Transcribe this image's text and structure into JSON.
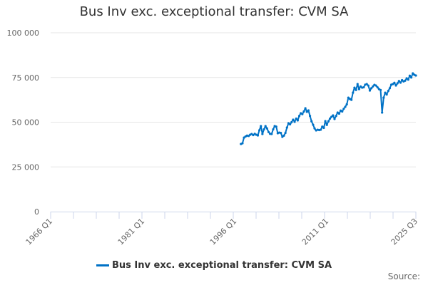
{
  "chart_data": {
    "type": "line",
    "title": "Bus Inv exc. exceptional transfer: CVM SA",
    "xlabel": "",
    "ylabel": "",
    "ylim": [
      0,
      100000
    ],
    "yticks": [
      0,
      25000,
      50000,
      75000,
      100000
    ],
    "ytick_labels": [
      "0",
      "25 000",
      "50 000",
      "75 000",
      "100 000"
    ],
    "xrange": [
      "1966 Q1",
      "2025 Q3"
    ],
    "xtick_labels": [
      "1966 Q1",
      "1981 Q1",
      "1996 Q1",
      "2011 Q1",
      "2025 Q3"
    ],
    "grid": "horizontal",
    "legend_position": "bottom",
    "color": "#0072c6",
    "source_label": "Source:",
    "series": [
      {
        "name": "Bus Inv exc. exceptional transfer: CVM SA",
        "x": [
          "1997 Q1",
          "1997 Q2",
          "1997 Q3",
          "1997 Q4",
          "1998 Q1",
          "1998 Q2",
          "1998 Q3",
          "1998 Q4",
          "1999 Q1",
          "1999 Q2",
          "1999 Q3",
          "1999 Q4",
          "2000 Q1",
          "2000 Q2",
          "2000 Q3",
          "2000 Q4",
          "2001 Q1",
          "2001 Q2",
          "2001 Q3",
          "2001 Q4",
          "2002 Q1",
          "2002 Q2",
          "2002 Q3",
          "2002 Q4",
          "2003 Q1",
          "2003 Q2",
          "2003 Q3",
          "2003 Q4",
          "2004 Q1",
          "2004 Q2",
          "2004 Q3",
          "2004 Q4",
          "2005 Q1",
          "2005 Q2",
          "2005 Q3",
          "2005 Q4",
          "2006 Q1",
          "2006 Q2",
          "2006 Q3",
          "2006 Q4",
          "2007 Q1",
          "2007 Q2",
          "2007 Q3",
          "2007 Q4",
          "2008 Q1",
          "2008 Q2",
          "2008 Q3",
          "2008 Q4",
          "2009 Q1",
          "2009 Q2",
          "2009 Q3",
          "2009 Q4",
          "2010 Q1",
          "2010 Q2",
          "2010 Q3",
          "2010 Q4",
          "2011 Q1",
          "2011 Q2",
          "2011 Q3",
          "2011 Q4",
          "2012 Q1",
          "2012 Q2",
          "2012 Q3",
          "2012 Q4",
          "2013 Q1",
          "2013 Q2",
          "2013 Q3",
          "2013 Q4",
          "2014 Q1",
          "2014 Q2",
          "2014 Q3",
          "2014 Q4",
          "2015 Q1",
          "2015 Q2",
          "2015 Q3",
          "2015 Q4",
          "2016 Q1",
          "2016 Q2",
          "2016 Q3",
          "2016 Q4",
          "2017 Q1",
          "2017 Q2",
          "2017 Q3",
          "2017 Q4",
          "2018 Q1",
          "2018 Q2",
          "2018 Q3",
          "2018 Q4",
          "2019 Q1",
          "2019 Q2",
          "2019 Q3",
          "2019 Q4",
          "2020 Q1",
          "2020 Q2",
          "2020 Q3",
          "2020 Q4",
          "2021 Q1",
          "2021 Q2",
          "2021 Q3",
          "2021 Q4",
          "2022 Q1",
          "2022 Q2",
          "2022 Q3",
          "2022 Q4",
          "2023 Q1",
          "2023 Q2",
          "2023 Q3",
          "2023 Q4",
          "2024 Q1",
          "2024 Q2",
          "2024 Q3",
          "2024 Q4",
          "2025 Q1",
          "2025 Q2",
          "2025 Q3"
        ],
        "values": [
          37800,
          38200,
          41400,
          42000,
          42500,
          42300,
          43000,
          43400,
          42800,
          43500,
          43000,
          42600,
          45500,
          47800,
          43400,
          46000,
          47800,
          46500,
          44500,
          43500,
          43400,
          46000,
          47800,
          47500,
          43800,
          44200,
          44000,
          41800,
          42500,
          44000,
          47000,
          49400,
          48800,
          50000,
          51400,
          50200,
          52000,
          51000,
          53500,
          55000,
          54500,
          56000,
          57800,
          55800,
          56600,
          53500,
          50500,
          48600,
          46500,
          45400,
          45800,
          45600,
          45800,
          47500,
          46800,
          50600,
          48500,
          50500,
          52000,
          53000,
          53800,
          51800,
          53500,
          55400,
          54800,
          56500,
          56000,
          57500,
          58600,
          60000,
          63700,
          63000,
          62500,
          66500,
          69300,
          68000,
          71300,
          68500,
          70000,
          69300,
          69500,
          71000,
          71300,
          70500,
          67700,
          69000,
          70000,
          70900,
          70500,
          69500,
          68500,
          68000,
          55400,
          63700,
          66500,
          65500,
          67500,
          69000,
          71000,
          71300,
          72000,
          70500,
          71700,
          73000,
          72100,
          73500,
          72800,
          73200,
          74500,
          73800,
          76000,
          75000,
          77300,
          76500,
          76100
        ]
      }
    ]
  }
}
